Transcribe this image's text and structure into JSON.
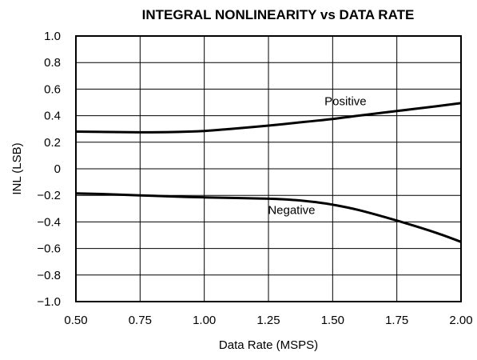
{
  "chart_data": {
    "type": "line",
    "title": "INTEGRAL NONLINEARITY vs DATA RATE",
    "xlabel": "Data Rate (MSPS)",
    "ylabel": "INL (LSB)",
    "xlim": [
      0.5,
      2.0
    ],
    "ylim": [
      -1.0,
      1.0
    ],
    "grid": true,
    "x_ticks": [
      0.5,
      0.75,
      1.0,
      1.25,
      1.5,
      1.75,
      2.0
    ],
    "x_tick_labels": [
      "0.50",
      "0.75",
      "1.00",
      "1.25",
      "1.50",
      "1.75",
      "2.00"
    ],
    "y_ticks": [
      1.0,
      0.8,
      0.6,
      0.4,
      0.2,
      0,
      -0.2,
      -0.4,
      -0.6,
      -0.8,
      -1.0
    ],
    "y_tick_labels": [
      "1.0",
      "0.8",
      "0.6",
      "0.4",
      "0.2",
      "0",
      "−0.2",
      "−0.4",
      "−0.6",
      "−0.8",
      "−1.0"
    ],
    "series": [
      {
        "name": "Positive",
        "x": [
          0.5,
          0.75,
          0.9,
          1.0,
          1.1,
          1.25,
          1.4,
          1.5,
          1.6,
          1.75,
          1.9,
          2.0
        ],
        "y": [
          0.28,
          0.275,
          0.278,
          0.285,
          0.3,
          0.325,
          0.355,
          0.375,
          0.4,
          0.435,
          0.47,
          0.495
        ]
      },
      {
        "name": "Negative",
        "x": [
          0.5,
          0.6,
          0.75,
          0.9,
          1.0,
          1.25,
          1.35,
          1.45,
          1.5,
          1.6,
          1.75,
          1.9,
          2.0
        ],
        "y": [
          -0.185,
          -0.19,
          -0.2,
          -0.21,
          -0.215,
          -0.225,
          -0.235,
          -0.255,
          -0.27,
          -0.31,
          -0.39,
          -0.48,
          -0.55
        ]
      }
    ]
  }
}
